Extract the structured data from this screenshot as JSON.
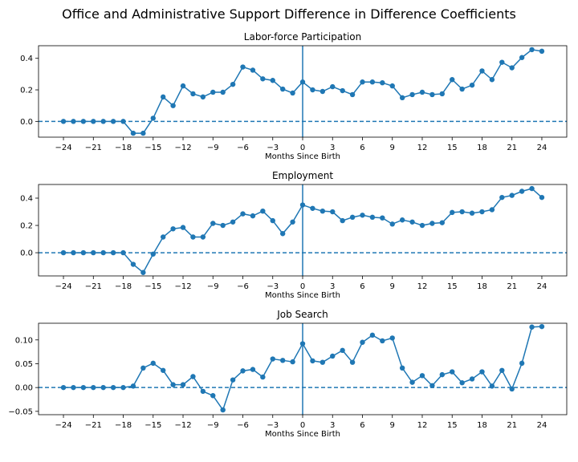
{
  "figure": {
    "title": "Office and Administrative Support Difference in Difference Coefficients"
  },
  "colors": {
    "series": "#1f77b4",
    "axis": "#000000"
  },
  "chart_data": [
    {
      "type": "line",
      "title": "Labor-force Participation",
      "xlabel": "Months Since Birth",
      "ylabel": "",
      "xlim": [
        -26.5,
        26.5
      ],
      "ylim": [
        -0.1,
        0.48
      ],
      "xticks": [
        -24,
        -21,
        -18,
        -15,
        -12,
        -9,
        -6,
        -3,
        0,
        3,
        6,
        9,
        12,
        15,
        18,
        21,
        24
      ],
      "yticks": [
        0.0,
        0.2,
        0.4
      ],
      "ytick_labels": [
        "0.0",
        "0.2",
        "0.4"
      ],
      "reference_lines": {
        "horizontal_y": 0,
        "vertical_x": 0
      },
      "grid": false,
      "marker": "circle",
      "x": [
        -24,
        -23,
        -22,
        -21,
        -20,
        -19,
        -18,
        -17,
        -16,
        -15,
        -14,
        -13,
        -12,
        -11,
        -10,
        -9,
        -8,
        -7,
        -6,
        -5,
        -4,
        -3,
        -2,
        -1,
        0,
        1,
        2,
        3,
        4,
        5,
        6,
        7,
        8,
        9,
        10,
        11,
        12,
        13,
        14,
        15,
        16,
        17,
        18,
        19,
        20,
        21,
        22,
        23,
        24
      ],
      "values": [
        0,
        0,
        0,
        0,
        0,
        0,
        0,
        -0.075,
        -0.075,
        0.02,
        0.155,
        0.1,
        0.225,
        0.175,
        0.155,
        0.185,
        0.185,
        0.235,
        0.345,
        0.325,
        0.27,
        0.26,
        0.205,
        0.18,
        0.25,
        0.2,
        0.19,
        0.22,
        0.195,
        0.17,
        0.25,
        0.25,
        0.245,
        0.225,
        0.15,
        0.17,
        0.185,
        0.17,
        0.175,
        0.265,
        0.205,
        0.23,
        0.32,
        0.265,
        0.375,
        0.34,
        0.405,
        0.455,
        0.445
      ]
    },
    {
      "type": "line",
      "title": "Employment",
      "xlabel": "Months Since Birth",
      "ylabel": "",
      "xlim": [
        -26.5,
        26.5
      ],
      "ylim": [
        -0.17,
        0.5
      ],
      "xticks": [
        -24,
        -21,
        -18,
        -15,
        -12,
        -9,
        -6,
        -3,
        0,
        3,
        6,
        9,
        12,
        15,
        18,
        21,
        24
      ],
      "yticks": [
        0.0,
        0.2,
        0.4
      ],
      "ytick_labels": [
        "0.0",
        "0.2",
        "0.4"
      ],
      "reference_lines": {
        "horizontal_y": 0,
        "vertical_x": 0
      },
      "grid": false,
      "marker": "circle",
      "x": [
        -24,
        -23,
        -22,
        -21,
        -20,
        -19,
        -18,
        -17,
        -16,
        -15,
        -14,
        -13,
        -12,
        -11,
        -10,
        -9,
        -8,
        -7,
        -6,
        -5,
        -4,
        -3,
        -2,
        -1,
        0,
        1,
        2,
        3,
        4,
        5,
        6,
        7,
        8,
        9,
        10,
        11,
        12,
        13,
        14,
        15,
        16,
        17,
        18,
        19,
        20,
        21,
        22,
        23,
        24
      ],
      "values": [
        0,
        0,
        0,
        0,
        0,
        0,
        0,
        -0.085,
        -0.145,
        -0.01,
        0.115,
        0.175,
        0.185,
        0.115,
        0.115,
        0.215,
        0.2,
        0.225,
        0.285,
        0.27,
        0.305,
        0.235,
        0.14,
        0.225,
        0.35,
        0.325,
        0.305,
        0.3,
        0.235,
        0.26,
        0.275,
        0.26,
        0.255,
        0.21,
        0.24,
        0.225,
        0.2,
        0.215,
        0.22,
        0.295,
        0.3,
        0.29,
        0.3,
        0.315,
        0.405,
        0.42,
        0.45,
        0.47,
        0.405
      ]
    },
    {
      "type": "line",
      "title": "Job Search",
      "xlabel": "Months Since Birth",
      "ylabel": "",
      "xlim": [
        -26.5,
        26.5
      ],
      "ylim": [
        -0.057,
        0.135
      ],
      "xticks": [
        -24,
        -21,
        -18,
        -15,
        -12,
        -9,
        -6,
        -3,
        0,
        3,
        6,
        9,
        12,
        15,
        18,
        21,
        24
      ],
      "yticks": [
        -0.05,
        0.0,
        0.05,
        0.1
      ],
      "ytick_labels": [
        "-0.05",
        "0.00",
        "0.05",
        "0.10"
      ],
      "reference_lines": {
        "horizontal_y": 0,
        "vertical_x": 0
      },
      "grid": false,
      "marker": "circle",
      "x": [
        -24,
        -23,
        -22,
        -21,
        -20,
        -19,
        -18,
        -17,
        -16,
        -15,
        -14,
        -13,
        -12,
        -11,
        -10,
        -9,
        -8,
        -7,
        -6,
        -5,
        -4,
        -3,
        -2,
        -1,
        0,
        1,
        2,
        3,
        4,
        5,
        6,
        7,
        8,
        9,
        10,
        11,
        12,
        13,
        14,
        15,
        16,
        17,
        18,
        19,
        20,
        21,
        22,
        23,
        24
      ],
      "values": [
        0,
        0,
        0,
        0,
        0,
        0,
        0,
        0.003,
        0.041,
        0.051,
        0.036,
        0.006,
        0.006,
        0.023,
        -0.008,
        -0.017,
        -0.047,
        0.016,
        0.035,
        0.038,
        0.022,
        0.06,
        0.057,
        0.054,
        0.092,
        0.056,
        0.053,
        0.066,
        0.078,
        0.053,
        0.095,
        0.11,
        0.098,
        0.104,
        0.041,
        0.011,
        0.025,
        0.004,
        0.027,
        0.033,
        0.01,
        0.018,
        0.033,
        0.003,
        0.036,
        -0.003,
        0.051,
        0.127,
        0.128
      ]
    }
  ]
}
